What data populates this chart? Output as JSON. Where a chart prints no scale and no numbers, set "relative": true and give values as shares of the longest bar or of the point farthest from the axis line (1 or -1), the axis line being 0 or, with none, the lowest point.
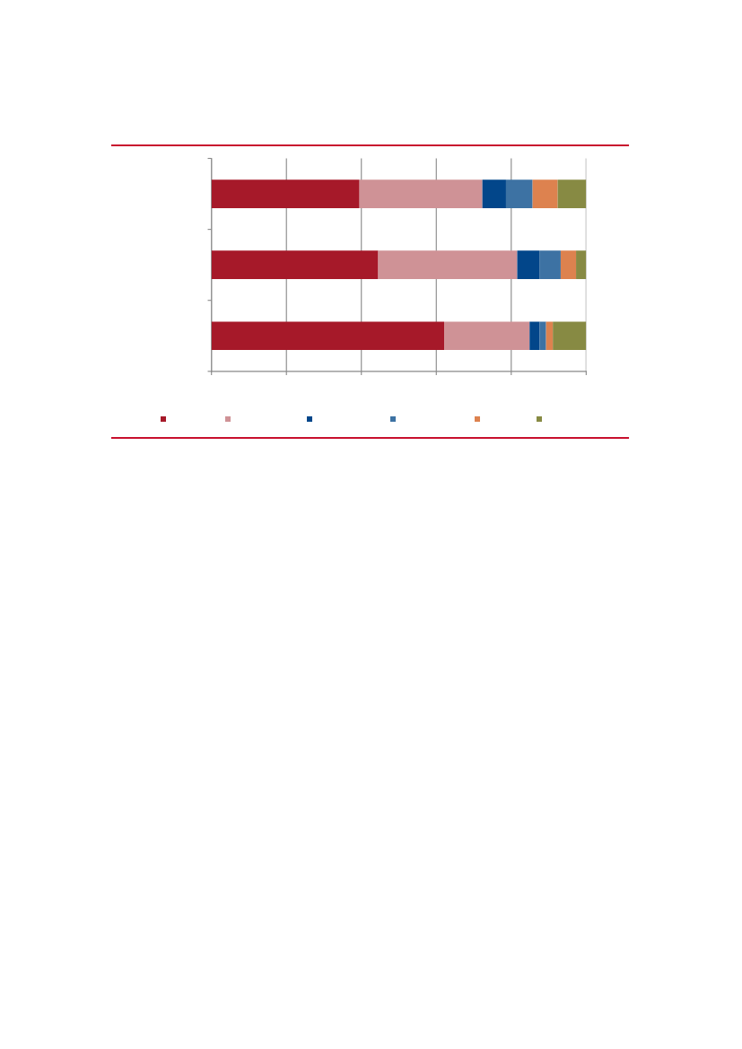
{
  "chart_data": {
    "type": "bar",
    "orientation": "horizontal",
    "stacked": true,
    "relative": true,
    "categories": [
      null,
      null,
      null
    ],
    "series": [
      {
        "color": "#a61929",
        "values": [
          0.395,
          0.445,
          0.621
        ]
      },
      {
        "color": "#cf9296",
        "values": [
          0.328,
          0.371,
          0.228
        ]
      },
      {
        "color": "#02468a",
        "values": [
          0.063,
          0.059,
          0.027
        ]
      },
      {
        "color": "#3d72a3",
        "values": [
          0.071,
          0.057,
          0.017
        ]
      },
      {
        "color": "#dd824f",
        "values": [
          0.067,
          0.041,
          0.018
        ]
      },
      {
        "color": "#878a43",
        "values": [
          0.076,
          0.027,
          0.089
        ]
      }
    ],
    "grid": "x"
  }
}
